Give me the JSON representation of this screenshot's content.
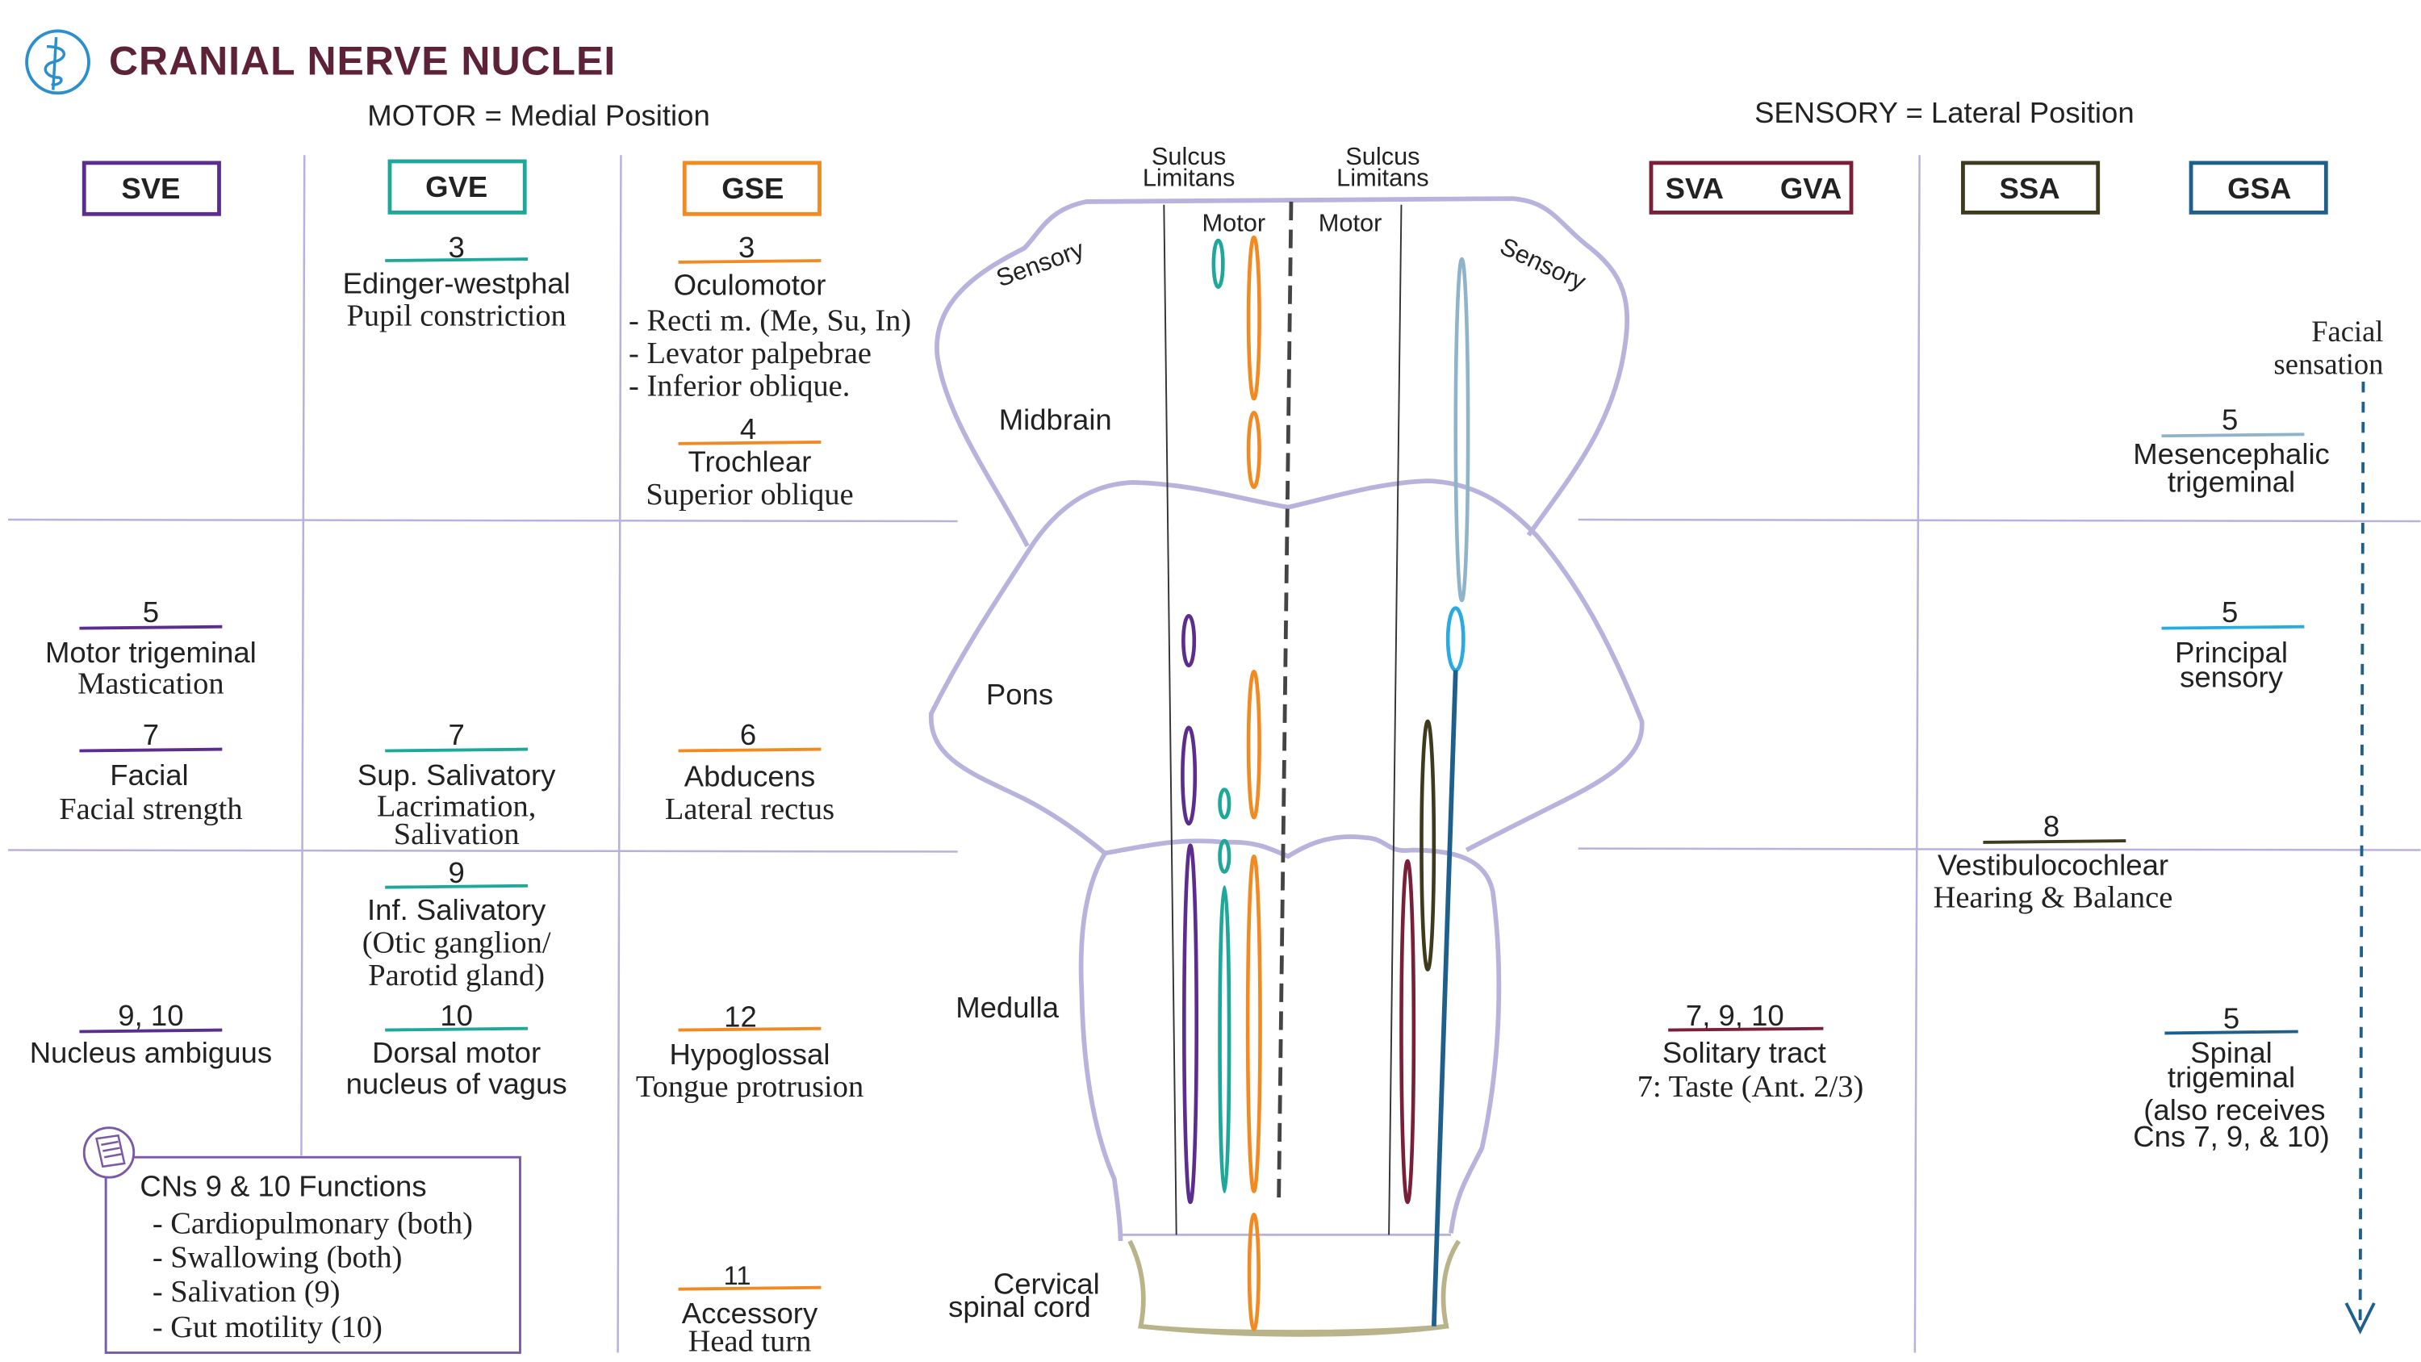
{
  "header": {
    "title": "CRANIAL NERVE NUCLEI",
    "motor_label": "MOTOR = Medial Position",
    "sensory_label": "SENSORY = Lateral Position",
    "logo_icon": "caduceus-icon"
  },
  "colors": {
    "title": "#5e2238",
    "sve": "#5b2d8e",
    "gve": "#1fa89a",
    "gse": "#f28a22",
    "sva_gva": "#7a1f3a",
    "ssa": "#3d3a1e",
    "gsa": "#1e5f8c",
    "gsa_mesencephalic": "#8fb3c8",
    "gsa_principal": "#29abe2",
    "brain_outline": "#b7b3dc",
    "cervical_outline": "#b9b38a"
  },
  "columns": {
    "sve": "SVE",
    "gve": "GVE",
    "gse": "GSE",
    "sva": "SVA",
    "gva": "GVA",
    "ssa": "SSA",
    "gsa": "GSA"
  },
  "brain": {
    "sulcus_left": [
      "Sulcus",
      "Limitans"
    ],
    "sulcus_right": [
      "Sulcus",
      "Limitans"
    ],
    "motor_left": "Motor",
    "motor_right": "Motor",
    "sensory_left": "Sensory",
    "sensory_right": "Sensory",
    "midbrain": "Midbrain",
    "pons": "Pons",
    "medulla": "Medulla",
    "cervical": [
      "Cervical",
      "spinal cord"
    ]
  },
  "sve": [
    {
      "num": "5",
      "name": "Motor trigeminal",
      "function": "Mastication"
    },
    {
      "num": "7",
      "name": "Facial",
      "function": "Facial strength"
    },
    {
      "num": "9, 10",
      "name": "Nucleus ambiguus"
    }
  ],
  "gve": [
    {
      "num": "3",
      "name": "Edinger-westphal",
      "function": "Pupil constriction"
    },
    {
      "num": "7",
      "name": "Sup. Salivatory",
      "function": [
        "Lacrimation,",
        "Salivation"
      ]
    },
    {
      "num": "9",
      "name": "Inf. Salivatory",
      "function": [
        "(Otic ganglion/",
        "Parotid gland)"
      ]
    },
    {
      "num": "10",
      "name": [
        "Dorsal motor",
        "nucleus of vagus"
      ]
    }
  ],
  "gse": [
    {
      "num": "3",
      "name": "Oculomotor",
      "function": [
        "- Recti m. (Me, Su, In)",
        "- Levator palpebrae",
        "- Inferior oblique."
      ]
    },
    {
      "num": "4",
      "name": "Trochlear",
      "function": "Superior oblique"
    },
    {
      "num": "6",
      "name": "Abducens",
      "function": "Lateral rectus"
    },
    {
      "num": "12",
      "name": "Hypoglossal",
      "function": "Tongue protrusion"
    },
    {
      "num": "11",
      "name": "Accessory",
      "function": "Head turn"
    }
  ],
  "sva": [
    {
      "num": "7, 9, 10",
      "name": "Solitary tract",
      "function": "7: Taste (Ant. 2/3)"
    }
  ],
  "ssa": [
    {
      "num": "8",
      "name": "Vestibulocochlear",
      "function": "Hearing & Balance"
    }
  ],
  "gsa": {
    "facial_sensation": [
      "Facial",
      "sensation"
    ],
    "items": [
      {
        "num": "5",
        "name": [
          "Mesencephalic",
          "trigeminal"
        ]
      },
      {
        "num": "5",
        "name": [
          "Principal",
          "sensory"
        ]
      },
      {
        "num": "5",
        "name": [
          "Spinal",
          "trigeminal",
          "(also receives",
          "Cns 7, 9, & 10)"
        ]
      }
    ]
  },
  "notes": {
    "icon": "notepad-icon",
    "title": "CNs 9 & 10 Functions",
    "items": [
      "- Cardiopulmonary (both)",
      "- Swallowing (both)",
      "- Salivation (9)",
      "- Gut motility (10)"
    ]
  }
}
